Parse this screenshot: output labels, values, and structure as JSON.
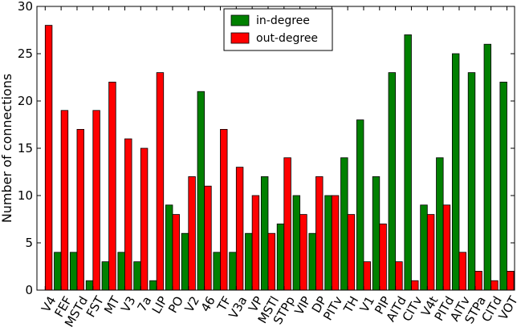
{
  "chart_data": {
    "type": "bar",
    "title": "",
    "xlabel": "",
    "ylabel": "Number of connections",
    "ylim": [
      0,
      30
    ],
    "yticks": [
      0,
      5,
      10,
      15,
      20,
      25,
      30
    ],
    "grid": false,
    "legend_position": "top-center",
    "categories": [
      "V4",
      "FEF",
      "MSTd",
      "FST",
      "MT",
      "V3",
      "7a",
      "LIP",
      "PO",
      "V2",
      "46",
      "TF",
      "V3a",
      "VP",
      "MSTl",
      "STPp",
      "VIP",
      "DP",
      "PITv",
      "TH",
      "V1",
      "PIP",
      "AITd",
      "CITv",
      "V4t",
      "PITd",
      "AITv",
      "STPa",
      "CITd",
      "VOT"
    ],
    "series": [
      {
        "name": "in-degree",
        "color": "#008000",
        "values": [
          0,
          4,
          4,
          1,
          3,
          4,
          3,
          1,
          9,
          6,
          21,
          4,
          4,
          6,
          12,
          7,
          10,
          6,
          10,
          14,
          18,
          12,
          23,
          27,
          9,
          14,
          25,
          23,
          26,
          22
        ]
      },
      {
        "name": "out-degree",
        "color": "#ff0000",
        "values": [
          28,
          19,
          17,
          19,
          22,
          16,
          15,
          23,
          8,
          12,
          11,
          17,
          13,
          10,
          6,
          14,
          8,
          12,
          10,
          8,
          3,
          7,
          3,
          1,
          8,
          9,
          4,
          2,
          1,
          2
        ]
      }
    ]
  }
}
